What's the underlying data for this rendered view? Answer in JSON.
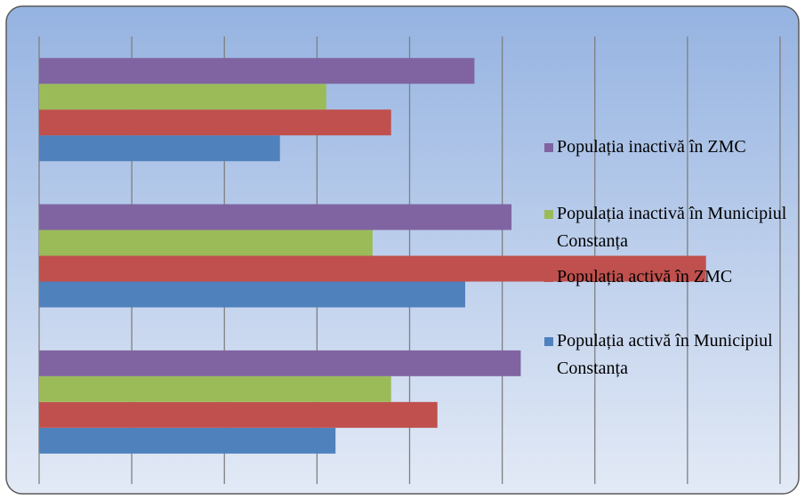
{
  "chart_data": {
    "type": "bar",
    "orientation": "horizontal",
    "categories": [
      null,
      null,
      null
    ],
    "series": [
      {
        "name": "Populația activă în Municipiul Constanța",
        "color": "#4f81bd",
        "values": [
          3.2,
          4.6,
          2.6
        ]
      },
      {
        "name": "Populația activă în ZMC",
        "color": "#c0504d",
        "values": [
          4.3,
          7.2,
          3.8
        ]
      },
      {
        "name": "Populația inactivă în Municipiul Constanța",
        "color": "#9bbb59",
        "values": [
          3.8,
          3.6,
          3.1
        ]
      },
      {
        "name": "Populația inactivă în ZMC",
        "color": "#8064a2",
        "values": [
          5.2,
          5.1,
          4.7
        ]
      }
    ],
    "xlim": [
      0,
      8
    ],
    "xticks": [
      0,
      1,
      2,
      3,
      4,
      5,
      6,
      7,
      8
    ],
    "grid": true,
    "legend": "right"
  }
}
